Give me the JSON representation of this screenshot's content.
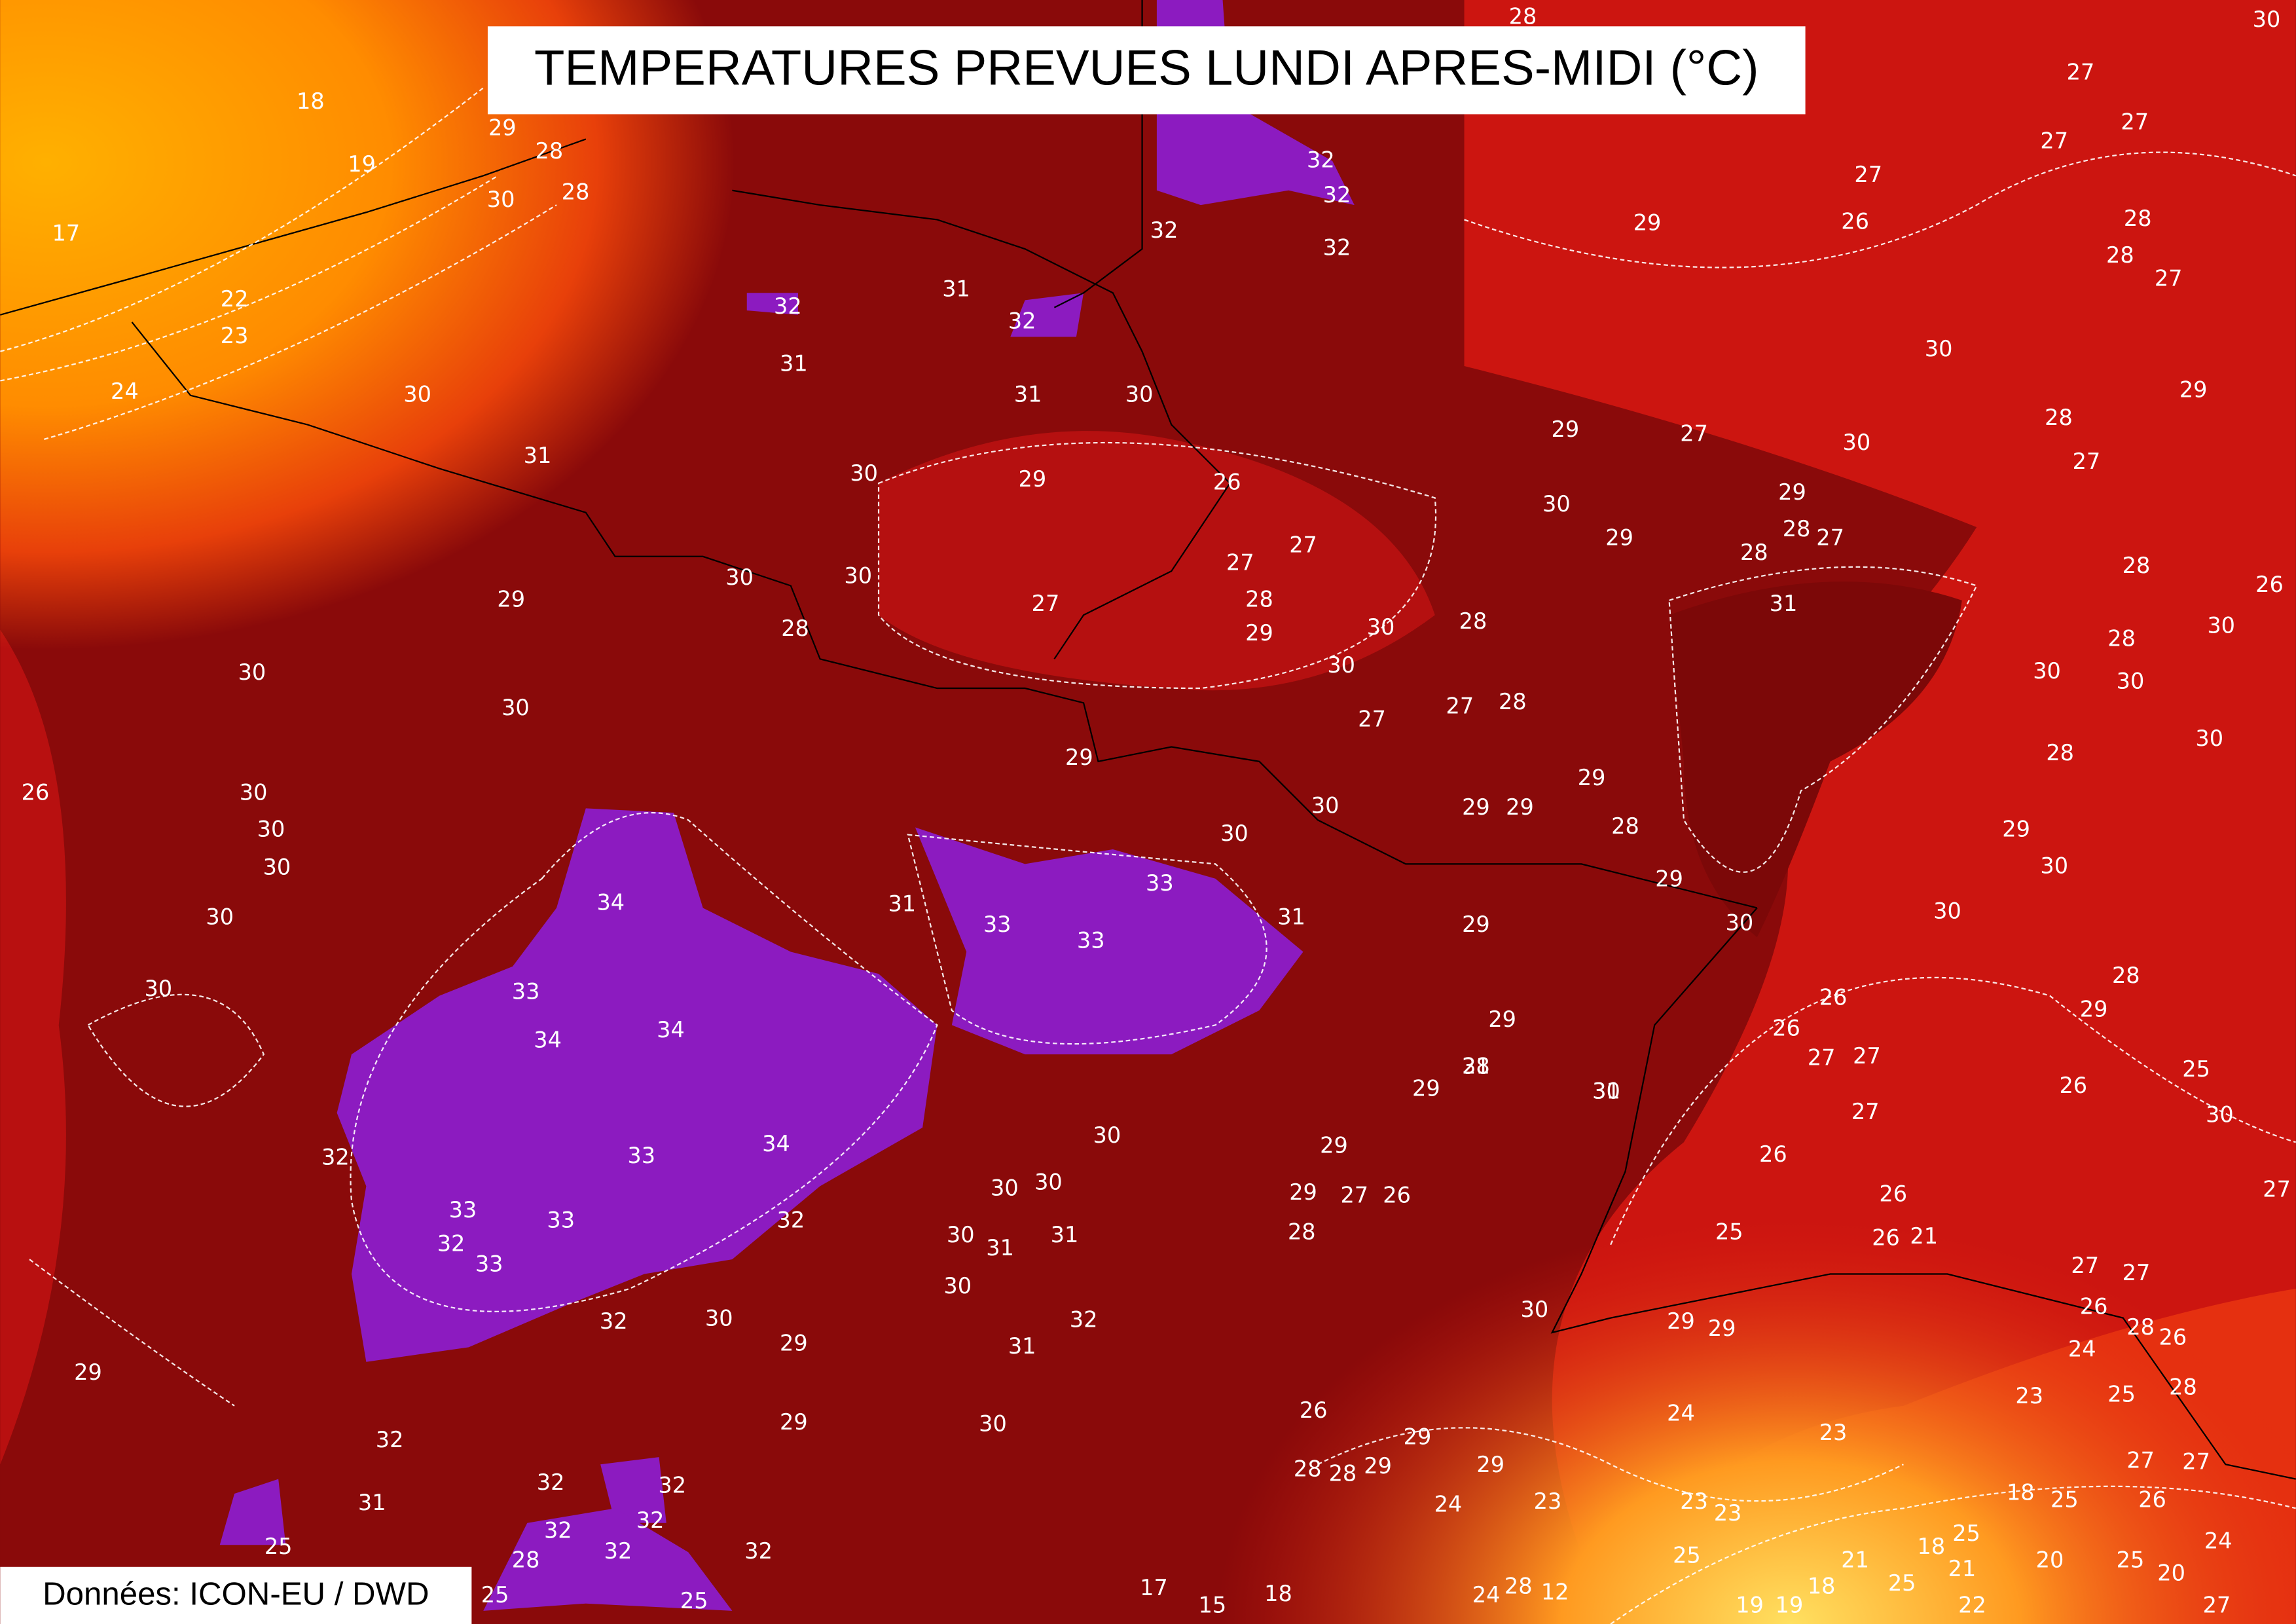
{
  "header": {
    "title": "TEMPERATURES PREVUES LUNDI APRES-MIDI (°C)"
  },
  "footer": {
    "credit": "Données: ICON-EU / DWD"
  },
  "map": {
    "labels": [
      "18",
      "17",
      "19",
      "22",
      "23",
      "24",
      "29",
      "28",
      "30",
      "28",
      "30",
      "31",
      "32",
      "31",
      "31",
      "32",
      "31",
      "30",
      "30",
      "29",
      "26",
      "32",
      "32",
      "32",
      "32",
      "29",
      "27",
      "26",
      "30",
      "29",
      "27",
      "30",
      "30",
      "29",
      "31",
      "30",
      "30",
      "29",
      "28",
      "27",
      "27",
      "27",
      "28",
      "29",
      "30",
      "28",
      "30",
      "27",
      "27",
      "28",
      "30",
      "30",
      "26",
      "30",
      "30",
      "30",
      "30",
      "30",
      "29",
      "30",
      "30",
      "29",
      "29",
      "29",
      "28",
      "29",
      "30",
      "31",
      "33",
      "33",
      "33",
      "31",
      "34",
      "33",
      "34",
      "34",
      "34",
      "33",
      "32",
      "33",
      "33",
      "32",
      "33",
      "32",
      "32",
      "30",
      "29",
      "29",
      "28",
      "29",
      "31",
      "30",
      "29",
      "29",
      "27",
      "26",
      "28",
      "30",
      "30",
      "30",
      "31",
      "31",
      "30",
      "32",
      "31",
      "29",
      "29",
      "30",
      "30",
      "29",
      "29",
      "25",
      "26",
      "26",
      "26",
      "27",
      "27",
      "27",
      "26",
      "25",
      "29",
      "28",
      "30",
      "30",
      "29",
      "28",
      "30",
      "30",
      "30",
      "28",
      "30",
      "28",
      "27",
      "28",
      "29",
      "29",
      "28",
      "27",
      "28",
      "27",
      "27",
      "27",
      "28",
      "28",
      "27",
      "28",
      "30",
      "31",
      "29",
      "32",
      "31",
      "32",
      "32",
      "32",
      "32",
      "32",
      "32",
      "28",
      "25",
      "25",
      "25",
      "26",
      "29",
      "29",
      "28",
      "28",
      "29",
      "24",
      "23",
      "24",
      "23",
      "23",
      "23",
      "25",
      "24",
      "28",
      "12",
      "17",
      "15",
      "18",
      "19",
      "19",
      "18",
      "21",
      "18",
      "25",
      "25",
      "21",
      "22",
      "20",
      "25",
      "20",
      "18",
      "25",
      "26",
      "24",
      "27",
      "23",
      "24",
      "25",
      "28",
      "28",
      "26",
      "26",
      "27",
      "27",
      "26",
      "26",
      "21",
      "30",
      "27",
      "27",
      "27",
      "26",
      "30"
    ]
  }
}
